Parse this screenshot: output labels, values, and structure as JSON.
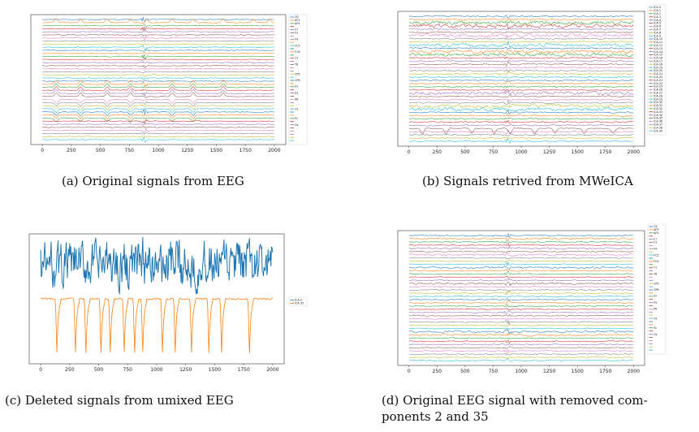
{
  "figure": {
    "captions": {
      "a": "(a) Original signals from EEG",
      "b": "(b) Signals retrived from MWeICA",
      "c": "(c) Deleted signals from umixed EEG",
      "d_line1": "(d) Original EEG signal with removed com-",
      "d_line2": "ponents 2 and 35"
    }
  },
  "colors": {
    "palette": [
      "#1f77b4",
      "#ff7f0e",
      "#2ca02c",
      "#d62728",
      "#9467bd",
      "#8c564b",
      "#e377c2",
      "#7f7f7f",
      "#bcbd22",
      "#17becf"
    ],
    "axis": "#333333"
  },
  "chart_data": [
    {
      "id": "a",
      "type": "line",
      "title": "",
      "xlabel": "",
      "ylabel": "",
      "x_range": [
        0,
        2000
      ],
      "x_ticks": [
        0,
        250,
        500,
        750,
        1000,
        1250,
        1500,
        1750,
        2000
      ],
      "y_ticks": [],
      "legend": "right",
      "grid": false,
      "n_series": 40,
      "legend_entries": [
        "O2",
        "AF3",
        "AF4",
        "",
        "F7",
        "F3",
        "",
        "F4",
        "",
        "FC5",
        "",
        "FC6",
        "",
        "T7",
        "",
        "T8",
        "",
        "",
        "CP5",
        "",
        "CP6",
        "",
        "P7",
        "",
        "P3",
        "",
        "P8",
        "",
        "",
        "O1",
        "",
        "",
        "Pz",
        "",
        "Oz",
        "",
        "",
        "",
        "",
        ""
      ],
      "events": [
        {
          "series_start": 1,
          "series_end": 1,
          "times": [
            120,
            330,
            560,
            760,
            900,
            1120,
            1300,
            1560,
            1820,
            1960
          ],
          "shape": "peak"
        },
        {
          "series_start": 21,
          "series_end": 25,
          "times": [
            120,
            330,
            560,
            760,
            1120,
            1300,
            1560
          ],
          "shape": "peak"
        },
        {
          "series_start": 26,
          "series_end": 32,
          "times": [
            120,
            330,
            560,
            760,
            1120,
            1300
          ],
          "shape": "dip"
        }
      ],
      "artifact_at": 880
    },
    {
      "id": "b",
      "type": "line",
      "title": "",
      "xlabel": "",
      "ylabel": "",
      "x_range": [
        0,
        2000
      ],
      "x_ticks": [
        0,
        250,
        500,
        750,
        1000,
        1250,
        1500,
        1750,
        2000
      ],
      "y_ticks": [],
      "legend": "right",
      "grid": false,
      "n_series": 40,
      "legend_entries": [
        "ICA-0",
        "ICA-1",
        "ICA-2",
        "ICA-3",
        "ICA-4",
        "ICA-5",
        "ICA-6",
        "ICA-7",
        "ICA-8",
        "ICA-9",
        "ICA-10",
        "ICA-11",
        "ICA-12",
        "ICA-13",
        "ICA-14",
        "ICA-15",
        "ICA-16",
        "ICA-17",
        "ICA-18",
        "ICA-19",
        "ICA-20",
        "ICA-21",
        "ICA-22",
        "ICA-23",
        "ICA-24",
        "ICA-25",
        "ICA-26",
        "ICA-27",
        "ICA-28",
        "ICA-29",
        "ICA-30",
        "ICA-31",
        "ICA-32",
        "ICA-33",
        "ICA-34",
        "ICA-35",
        "ICA-36",
        "ICA-37",
        "ICA-38",
        "ICA-39"
      ],
      "events": [
        {
          "series_start": 35,
          "series_end": 35,
          "times": [
            120,
            330,
            560,
            760,
            900,
            1120,
            1300,
            1560,
            1820
          ],
          "shape": "dip"
        }
      ],
      "artifact_at": 880
    },
    {
      "id": "c",
      "type": "line",
      "title": "",
      "xlabel": "",
      "ylabel": "",
      "x_range": [
        0,
        2000
      ],
      "x_ticks": [
        0,
        250,
        500,
        750,
        1000,
        1250,
        1500,
        1750,
        2000
      ],
      "y_ticks": [],
      "legend": "right",
      "grid": false,
      "series": [
        {
          "name": "ICA-2",
          "baseline": 0.8,
          "noise": 0.35,
          "events": []
        },
        {
          "name": "ICA-35",
          "baseline": 0.2,
          "noise": 0.05,
          "events": [
            140,
            300,
            390,
            520,
            600,
            720,
            810,
            880,
            1050,
            1160,
            1300,
            1450,
            1560,
            1800
          ]
        }
      ]
    },
    {
      "id": "d",
      "type": "line",
      "title": "",
      "xlabel": "",
      "ylabel": "",
      "x_range": [
        0,
        2000
      ],
      "x_ticks": [
        0,
        250,
        500,
        750,
        1000,
        1250,
        1500,
        1750,
        2000
      ],
      "y_ticks": [],
      "legend": "right",
      "grid": false,
      "n_series": 40,
      "legend_entries": [
        "O2",
        "AF3",
        "AF4",
        "",
        "F7",
        "F3",
        "",
        "F4",
        "",
        "FC5",
        "",
        "FC6",
        "",
        "T7",
        "",
        "T8",
        "",
        "",
        "CP5",
        "",
        "CP6",
        "",
        "P7",
        "",
        "P3",
        "",
        "P8",
        "",
        "",
        "O1",
        "",
        "",
        "Pz",
        "",
        "Oz",
        "",
        "",
        "",
        "",
        ""
      ],
      "events": [],
      "artifact_at": 880
    }
  ]
}
